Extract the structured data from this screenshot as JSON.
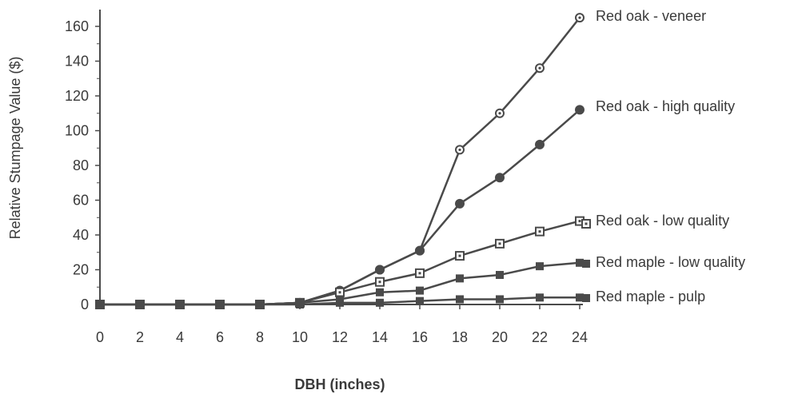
{
  "chart_data": {
    "type": "line",
    "title": "",
    "xlabel": "DBH (inches)",
    "ylabel": "Relative Stumpage Value ($)",
    "x": [
      0,
      2,
      4,
      6,
      8,
      10,
      12,
      14,
      16,
      18,
      20,
      22,
      24
    ],
    "xticks": [
      "0",
      "2",
      "4",
      "6",
      "8",
      "10",
      "12",
      "14",
      "16",
      "18",
      "20",
      "22",
      "24"
    ],
    "yticks": [
      "0",
      "20",
      "40",
      "60",
      "80",
      "100",
      "120",
      "140",
      "160"
    ],
    "xlim": [
      0,
      24
    ],
    "ylim": [
      0,
      160
    ],
    "grid": false,
    "legend": "inline labels at right end of each series",
    "series": [
      {
        "name": "Red oak - veneer",
        "marker": "circle-open",
        "values": [
          0,
          0,
          0,
          0,
          0,
          1,
          8,
          20,
          31,
          89,
          110,
          136,
          165
        ]
      },
      {
        "name": "Red oak - high quality",
        "marker": "circle-filled",
        "values": [
          0,
          0,
          0,
          0,
          0,
          1,
          8,
          20,
          31,
          58,
          73,
          92,
          112
        ]
      },
      {
        "name": "Red oak - low quality",
        "marker": "square-open",
        "values": [
          0,
          0,
          0,
          0,
          0,
          1,
          7,
          13,
          18,
          28,
          35,
          42,
          48
        ]
      },
      {
        "name": "Red maple - low quality",
        "marker": "square-filled",
        "values": [
          0,
          0,
          0,
          0,
          0,
          1,
          3,
          7,
          8,
          15,
          17,
          22,
          24
        ]
      },
      {
        "name": "Red maple - pulp",
        "marker": "square-filled",
        "values": [
          0,
          0,
          0,
          0,
          0,
          0,
          1,
          1,
          2,
          3,
          3,
          4,
          4
        ]
      }
    ],
    "colors": {
      "line": "#4a4a4a",
      "text": "#3a3a3a"
    }
  }
}
